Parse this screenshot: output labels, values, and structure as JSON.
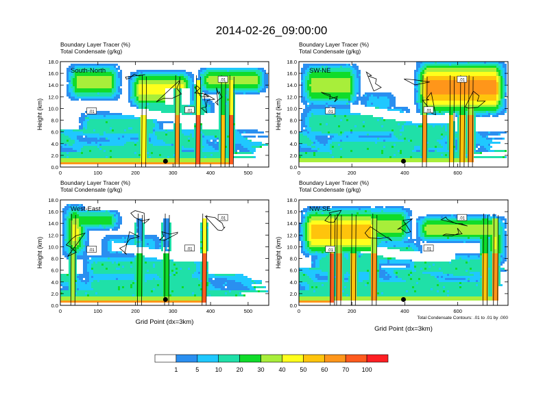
{
  "title": "2014-02-26_09:00:00",
  "chart_data": {
    "type": "filled-contour cross-section (4 panels)",
    "shared": {
      "field_label": "Boundary Layer Tracer",
      "field_units": "(%)",
      "contour_label": "Total Condensate",
      "contour_units": "(g/kg)",
      "ylabel": "Height (km)",
      "xlabel": "Grid Point (dx=3km)",
      "ylim": [
        0,
        18
      ],
      "yticks": [
        "0.0",
        "2.0",
        "4.0",
        "6.0",
        "8.0",
        "10.0",
        "12.0",
        "14.0",
        "16.0",
        "18.0"
      ],
      "contour_note": "Total Condensate Contours: .01 to .01 by .000",
      "contour_value_label": ".01"
    },
    "panels": [
      {
        "id": "south-north",
        "name": "South-North",
        "xlim": [
          0,
          555
        ],
        "xticks": [
          "0",
          "100",
          "200",
          "300",
          "400",
          "500"
        ],
        "xtick_values": [
          0,
          100,
          200,
          300,
          400,
          500
        ],
        "marker_x": 280,
        "marker_height_km": 1.0,
        "show_xlabel": false
      },
      {
        "id": "sw-ne",
        "name": "SW-NE",
        "xlim": [
          0,
          790
        ],
        "xticks": [
          "0",
          "200",
          "400",
          "600"
        ],
        "xtick_values": [
          0,
          200,
          400,
          600
        ],
        "marker_x": 395,
        "marker_height_km": 1.0,
        "show_xlabel": false
      },
      {
        "id": "west-east",
        "name": "West-East",
        "xlim": [
          0,
          555
        ],
        "xticks": [
          "0",
          "100",
          "200",
          "300",
          "400",
          "500"
        ],
        "xtick_values": [
          0,
          100,
          200,
          300,
          400,
          500
        ],
        "marker_x": 280,
        "marker_height_km": 1.0,
        "show_xlabel": true
      },
      {
        "id": "nw-se",
        "name": "NW-SE",
        "xlim": [
          0,
          790
        ],
        "xticks": [
          "0",
          "200",
          "400",
          "600"
        ],
        "xtick_values": [
          0,
          200,
          400,
          600
        ],
        "marker_x": 395,
        "marker_height_km": 1.0,
        "show_xlabel": true
      }
    ],
    "colorbar": {
      "labels": [
        "1",
        "5",
        "10",
        "20",
        "30",
        "40",
        "50",
        "60",
        "70",
        "100"
      ],
      "colors": [
        "#ffffff",
        "#2a8ff0",
        "#1fc8ff",
        "#1fe0a8",
        "#10dc2a",
        "#a8ee3a",
        "#ffff1c",
        "#ffc40c",
        "#ff961a",
        "#ff5b1e",
        "#ff1f23"
      ]
    }
  }
}
